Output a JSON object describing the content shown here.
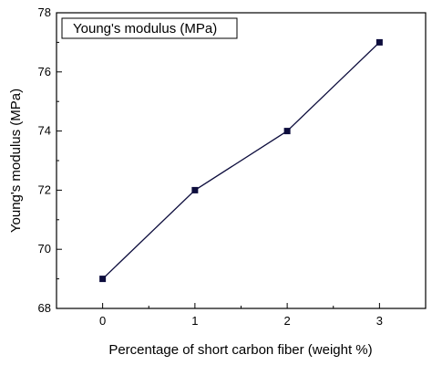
{
  "chart_data": {
    "type": "line",
    "x": [
      0,
      1,
      2,
      3
    ],
    "series": [
      {
        "name": "Young's modulus (MPa)",
        "values": [
          69,
          72,
          74,
          77
        ],
        "color": "#0d0d3d",
        "marker": "square"
      }
    ],
    "xlabel": "Percentage of short carbon fiber (weight %)",
    "ylabel": "Young's modulus (MPa)",
    "xlim": [
      -0.5,
      3.5
    ],
    "ylim": [
      68,
      78
    ],
    "xticks": [
      "0",
      "1",
      "2",
      "3"
    ],
    "yticks": [
      "68",
      "70",
      "72",
      "74",
      "76",
      "78"
    ],
    "grid": false,
    "legend_position": "top-left"
  }
}
